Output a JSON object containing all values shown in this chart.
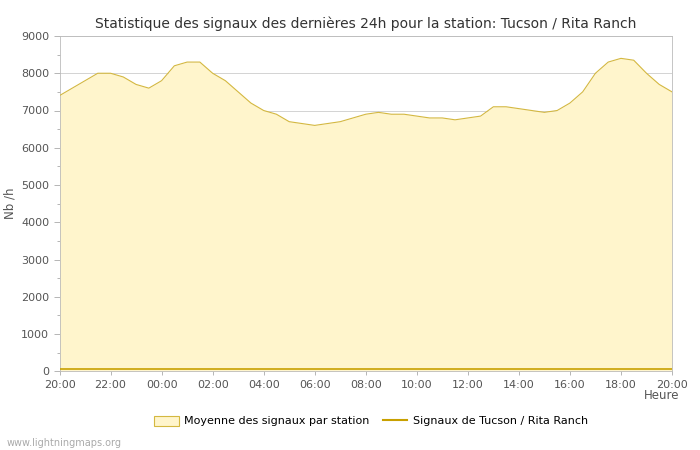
{
  "title": "Statistique des signaux des dernières 24h pour la station: Tucson / Rita Ranch",
  "xlabel": "Heure",
  "ylabel": "Nb /h",
  "xlim": [
    0,
    24
  ],
  "ylim": [
    0,
    9000
  ],
  "yticks": [
    0,
    1000,
    2000,
    3000,
    4000,
    5000,
    6000,
    7000,
    8000,
    9000
  ],
  "xtick_labels": [
    "20:00",
    "22:00",
    "00:00",
    "02:00",
    "04:00",
    "06:00",
    "08:00",
    "10:00",
    "12:00",
    "14:00",
    "16:00",
    "18:00",
    "20:00"
  ],
  "xtick_positions": [
    0,
    2,
    4,
    6,
    8,
    10,
    12,
    14,
    16,
    18,
    20,
    22,
    24
  ],
  "fill_color": "#FFF5CC",
  "fill_edge_color": "#D4B840",
  "line_color": "#C8A000",
  "bg_color": "#ffffff",
  "plot_bg_color": "#ffffff",
  "grid_color": "#cccccc",
  "title_fontsize": 10,
  "axis_fontsize": 8.5,
  "tick_fontsize": 8,
  "watermark": "www.lightningmaps.org",
  "legend_label_fill": "Moyenne des signaux par station",
  "legend_label_line": "Signaux de Tucson / Rita Ranch",
  "mean_x": [
    0,
    0.5,
    1,
    1.5,
    2,
    2.5,
    3,
    3.5,
    4,
    4.5,
    5,
    5.5,
    6,
    6.5,
    7,
    7.5,
    8,
    8.5,
    9,
    9.5,
    10,
    10.5,
    11,
    11.5,
    12,
    12.5,
    13,
    13.5,
    14,
    14.5,
    15,
    15.5,
    16,
    16.5,
    17,
    17.5,
    18,
    18.5,
    19,
    19.5,
    20,
    20.5,
    21,
    21.5,
    22,
    22.5,
    23,
    23.5,
    24
  ],
  "mean_y": [
    7400,
    7600,
    7800,
    8000,
    8000,
    7900,
    7700,
    7600,
    7800,
    8200,
    8300,
    8300,
    8000,
    7800,
    7500,
    7200,
    7000,
    6900,
    6700,
    6650,
    6600,
    6650,
    6700,
    6800,
    6900,
    6950,
    6900,
    6900,
    6850,
    6800,
    6800,
    6750,
    6800,
    6850,
    7100,
    7100,
    7050,
    7000,
    6950,
    7000,
    7200,
    7500,
    8000,
    8300,
    8400,
    8350,
    8000,
    7700,
    7500
  ],
  "signal_x": [
    0,
    1,
    2,
    3,
    4,
    5,
    6,
    7,
    8,
    9,
    10,
    11,
    12,
    13,
    14,
    15,
    16,
    17,
    18,
    19,
    20,
    21,
    22,
    23,
    24
  ],
  "signal_y": [
    50,
    50,
    50,
    50,
    50,
    50,
    50,
    50,
    50,
    50,
    50,
    50,
    50,
    50,
    50,
    50,
    50,
    50,
    50,
    50,
    50,
    50,
    50,
    50,
    50
  ]
}
